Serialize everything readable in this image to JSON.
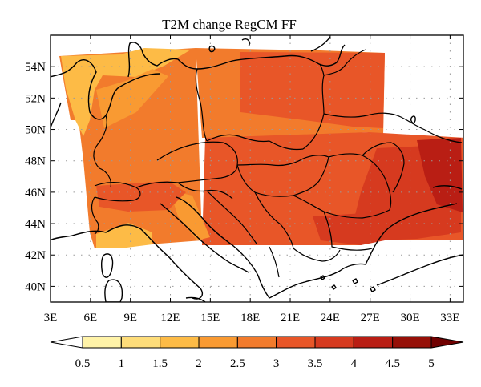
{
  "title": "T2M change RegCM FF",
  "map": {
    "lon_range": [
      3,
      34
    ],
    "lat_range": [
      39,
      56
    ],
    "lon_ticks": [
      3,
      6,
      9,
      12,
      15,
      18,
      21,
      24,
      27,
      30,
      33
    ],
    "lat_ticks": [
      40,
      42,
      44,
      46,
      48,
      50,
      52,
      54
    ],
    "lon_tick_labels": [
      "3E",
      "6E",
      "9E",
      "12E",
      "15E",
      "18E",
      "21E",
      "24E",
      "27E",
      "30E",
      "33E"
    ],
    "lat_tick_labels": [
      "40N",
      "42N",
      "44N",
      "46N",
      "48N",
      "50N",
      "52N",
      "54N"
    ],
    "gridlines": "dotted"
  },
  "colorbar": {
    "levels": [
      "0.5",
      "1",
      "1.5",
      "2",
      "2.5",
      "3",
      "3.5",
      "4",
      "4.5",
      "5"
    ],
    "colors": [
      "#ffffff",
      "#fff3a8",
      "#fedd7a",
      "#fdbb46",
      "#f99a32",
      "#f27b2c",
      "#e85628",
      "#d63a1f",
      "#b91e14",
      "#961008",
      "#700000"
    ],
    "extend": "both"
  }
}
